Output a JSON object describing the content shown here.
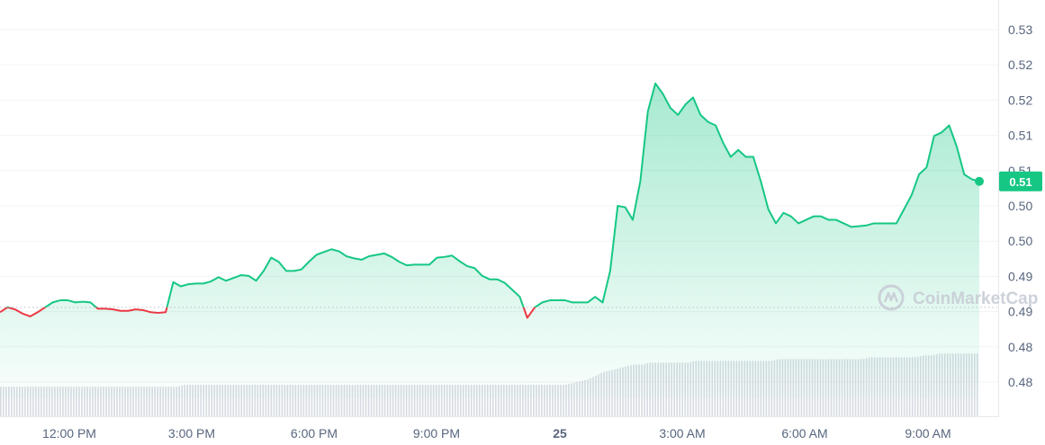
{
  "chart_data": {
    "type": "area",
    "title": "",
    "xlabel": "",
    "ylabel": "",
    "x_ticks": [
      "12:00 PM",
      "3:00 PM",
      "6:00 PM",
      "9:00 PM",
      "25",
      "3:00 AM",
      "6:00 AM",
      "9:00 AM"
    ],
    "y_ticks": [
      "0.53",
      "0.52",
      "0.52",
      "0.51",
      "0.51",
      "0.50",
      "0.50",
      "0.49",
      "0.49",
      "0.48",
      "0.48"
    ],
    "ylim": [
      0.4775,
      0.5325
    ],
    "open_price": 0.4905,
    "current_price": 0.5085,
    "current_price_label": "0.51",
    "watermark": "CoinMarketCap",
    "grid": true,
    "colors": {
      "up_line": "#16c784",
      "down_line": "#ea3943",
      "area_top": "#16c784",
      "volume_bar": "#d6dae2",
      "baseline_dots": "#b8bec8"
    },
    "series": [
      {
        "values": [
          0.4898,
          0.4905,
          0.4902,
          0.4896,
          0.4892,
          0.4898,
          0.4905,
          0.4912,
          0.4915,
          0.4915,
          0.4912,
          0.4913,
          0.4912,
          0.4903,
          0.4903,
          0.4902,
          0.49,
          0.49,
          0.4902,
          0.4901,
          0.4898,
          0.4897,
          0.4898,
          0.4941,
          0.4935,
          0.4938,
          0.4939,
          0.4939,
          0.4942,
          0.4948,
          0.4943,
          0.4947,
          0.4951,
          0.495,
          0.4943,
          0.4957,
          0.4976,
          0.497,
          0.4957,
          0.4957,
          0.4959,
          0.497,
          0.498,
          0.4984,
          0.4988,
          0.4985,
          0.4978,
          0.4975,
          0.4973,
          0.4978,
          0.498,
          0.4982,
          0.4977,
          0.497,
          0.4965,
          0.4966,
          0.4966,
          0.4966,
          0.4976,
          0.4977,
          0.4979,
          0.4971,
          0.4964,
          0.4961,
          0.495,
          0.4945,
          0.4945,
          0.494,
          0.493,
          0.492,
          0.489,
          0.4905,
          0.4912,
          0.4915,
          0.4915,
          0.4915,
          0.4912,
          0.4912,
          0.4912,
          0.492,
          0.4912,
          0.4957,
          0.505,
          0.5048,
          0.503,
          0.5085,
          0.5185,
          0.5225,
          0.521,
          0.519,
          0.518,
          0.5195,
          0.5205,
          0.518,
          0.517,
          0.5165,
          0.514,
          0.512,
          0.513,
          0.512,
          0.512,
          0.5085,
          0.5045,
          0.5025,
          0.504,
          0.5035,
          0.5025,
          0.503,
          0.5035,
          0.5035,
          0.503,
          0.503,
          0.5025,
          0.502,
          0.5021,
          0.5022,
          0.5025,
          0.5025,
          0.5025,
          0.5025,
          0.5045,
          0.5065,
          0.5095,
          0.5105,
          0.515,
          0.5155,
          0.5165,
          0.5135,
          0.5095,
          0.5088,
          0.5085
        ]
      }
    ],
    "volume": [
      0.16,
      0.16,
      0.16,
      0.16,
      0.16,
      0.16,
      0.16,
      0.16,
      0.16,
      0.16,
      0.16,
      0.16,
      0.16,
      0.16,
      0.16,
      0.16,
      0.16,
      0.16,
      0.16,
      0.16,
      0.16,
      0.16,
      0.16,
      0.16,
      0.17,
      0.17,
      0.17,
      0.17,
      0.17,
      0.17,
      0.17,
      0.17,
      0.17,
      0.17,
      0.17,
      0.17,
      0.17,
      0.17,
      0.17,
      0.17,
      0.17,
      0.17,
      0.17,
      0.17,
      0.17,
      0.17,
      0.17,
      0.17,
      0.17,
      0.17,
      0.17,
      0.17,
      0.17,
      0.17,
      0.17,
      0.17,
      0.17,
      0.17,
      0.17,
      0.17,
      0.17,
      0.17,
      0.17,
      0.17,
      0.17,
      0.17,
      0.17,
      0.17,
      0.17,
      0.17,
      0.17,
      0.17,
      0.17,
      0.17,
      0.17,
      0.18,
      0.19,
      0.2,
      0.22,
      0.24,
      0.25,
      0.26,
      0.27,
      0.28,
      0.28,
      0.29,
      0.29,
      0.29,
      0.29,
      0.29,
      0.29,
      0.3,
      0.3,
      0.3,
      0.3,
      0.3,
      0.3,
      0.3,
      0.3,
      0.3,
      0.3,
      0.3,
      0.31,
      0.31,
      0.31,
      0.31,
      0.31,
      0.31,
      0.31,
      0.31,
      0.31,
      0.31,
      0.31,
      0.31,
      0.32,
      0.32,
      0.32,
      0.32,
      0.32,
      0.32,
      0.32,
      0.33,
      0.33,
      0.34,
      0.34,
      0.34,
      0.34,
      0.34,
      0.34
    ]
  }
}
